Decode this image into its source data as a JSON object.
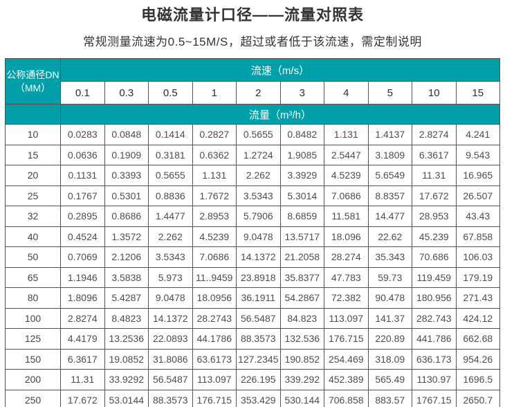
{
  "page": {
    "title": "电磁流量计口径——流量对照表",
    "subtitle": "常规测量流速为0.5~15M/S，超过或者低于该流速，需定制说明"
  },
  "colors": {
    "teal": "#00A0AA",
    "grid": "#4F4F4F",
    "title_text": "#333333",
    "cell_text": "#4D4D4D"
  },
  "table": {
    "corner_header": {
      "line1": "公称通径DN",
      "line2": "（MM）"
    },
    "velocity_header": "流速（m/s）",
    "flow_header": "流量（m³/h）",
    "velocity_columns": [
      "0.1",
      "0.3",
      "0.5",
      "1",
      "2",
      "3",
      "4",
      "5",
      "10",
      "15"
    ],
    "rows": [
      {
        "dn": "10",
        "values": [
          "0.0283",
          "0.0848",
          "0.1414",
          "0.2827",
          "0.5655",
          "0.8482",
          "1.131",
          "1.4137",
          "2.8274",
          "4.241"
        ]
      },
      {
        "dn": "15",
        "values": [
          "0.0636",
          "0.1909",
          "0.3181",
          "0.6362",
          "1.2724",
          "1.9085",
          "2.5447",
          "3.1809",
          "6.3617",
          "9.543"
        ]
      },
      {
        "dn": "20",
        "values": [
          "0.1131",
          "0.3393",
          "0.5655",
          "1.131",
          "2.262",
          "3.3929",
          "4.5239",
          "5.6549",
          "11.31",
          "16.965"
        ]
      },
      {
        "dn": "25",
        "values": [
          "0.1767",
          "0.5301",
          "0.8836",
          "1.7672",
          "3.5343",
          "5.3014",
          "7.0686",
          "8.8357",
          "17.672",
          "26.507"
        ]
      },
      {
        "dn": "32",
        "values": [
          "0.2895",
          "0.8686",
          "1.4477",
          "2.8953",
          "5.7906",
          "8.6859",
          "11.581",
          "14.477",
          "28.953",
          "43.43"
        ]
      },
      {
        "dn": "40",
        "values": [
          "0.4524",
          "1.3572",
          "2.262",
          "4.5239",
          "9.0478",
          "13.5717",
          "18.096",
          "22.62",
          "45.239",
          "67.858"
        ]
      },
      {
        "dn": "50",
        "values": [
          "0.7069",
          "2.1206",
          "3.5343",
          "7.0686",
          "14.1372",
          "21.2058",
          "28.274",
          "35.343",
          "70.686",
          "106.03"
        ]
      },
      {
        "dn": "65",
        "values": [
          "1.1946",
          "3.5838",
          "5.973",
          "11..9459",
          "23.8918",
          "35.8377",
          "47.783",
          "59.73",
          "119.459",
          "179.19"
        ]
      },
      {
        "dn": "80",
        "values": [
          "1.8096",
          "5.4287",
          "9.0478",
          "18.0956",
          "36.1911",
          "54.2867",
          "72.382",
          "90.478",
          "180.956",
          "271.43"
        ]
      },
      {
        "dn": "100",
        "values": [
          "2.8274",
          "8.4823",
          "14.1372",
          "28.2743",
          "56.5487",
          "84.823",
          "113.097",
          "141.37",
          "282.743",
          "424.12"
        ]
      },
      {
        "dn": "125",
        "values": [
          "4.4179",
          "13.2536",
          "22.0893",
          "44.1786",
          "88.3573",
          "132.536",
          "176.715",
          "220.89",
          "441.786",
          "662.68"
        ]
      },
      {
        "dn": "150",
        "values": [
          "6.3617",
          "19.0852",
          "31.8086",
          "63.6173",
          "127.2345",
          "190.852",
          "254.469",
          "318.09",
          "636.173",
          "954.26"
        ]
      },
      {
        "dn": "200",
        "values": [
          "11.31",
          "33.9292",
          "56.5487",
          "113.097",
          "226.195",
          "339.292",
          "452.389",
          "565.49",
          "1130.97",
          "1696.5"
        ]
      },
      {
        "dn": "250",
        "values": [
          "17.672",
          "53.0144",
          "88.3573",
          "176.715",
          "353.429",
          "530.144",
          "706.858",
          "883.57",
          "1767.15",
          "2650.7"
        ]
      }
    ]
  }
}
